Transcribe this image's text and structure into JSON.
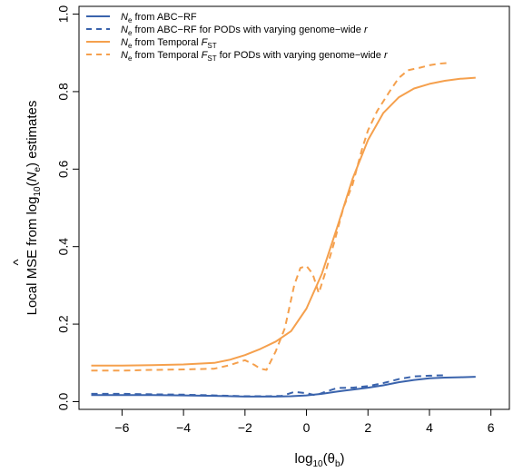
{
  "chart_data": {
    "type": "line",
    "xlabel_text": "log",
    "xlabel_sub": "10",
    "xlabel_arg": "(θ",
    "xlabel_arg_sub": "b",
    "xlabel_close": ")",
    "ylabel_pre": "Local MSE from log",
    "ylabel_sub": "10",
    "ylabel_open": "(",
    "ylabel_N": "N",
    "ylabel_hat": "^",
    "ylabel_e": "e",
    "ylabel_post": ") estimates",
    "xlim": [
      -7.4,
      6.6
    ],
    "ylim": [
      -0.02,
      1.02
    ],
    "x_ticks": [
      "−6",
      "−4",
      "−2",
      "0",
      "2",
      "4",
      "6"
    ],
    "x_tick_values": [
      -6,
      -4,
      -2,
      0,
      2,
      4,
      6
    ],
    "y_ticks": [
      "0.0",
      "0.2",
      "0.4",
      "0.6",
      "0.8",
      "1.0"
    ],
    "y_tick_values": [
      0,
      0.2,
      0.4,
      0.6,
      0.8,
      1.0
    ],
    "colors": {
      "blue": "#3a63ac",
      "orange": "#f5a04d"
    },
    "legend": [
      {
        "N": "N",
        "sub": "e",
        "text": " from ABC−RF",
        "dashed": false,
        "color": "blue"
      },
      {
        "N": "N",
        "sub": "e",
        "text": " from ABC−RF for PODs with varying genome−wide ",
        "r": "r",
        "dashed": true,
        "color": "blue"
      },
      {
        "N": "N",
        "sub": "e",
        "text": " from Temporal ",
        "F": "F",
        "Fsub": "ST",
        "dashed": false,
        "color": "orange"
      },
      {
        "N": "N",
        "sub": "e",
        "text": " from Temporal ",
        "F": "F",
        "Fsub": "ST",
        "text2": " for PODs with varying genome−wide ",
        "r": "r",
        "dashed": true,
        "color": "orange"
      }
    ],
    "series": [
      {
        "color": "blue",
        "dashed": false,
        "points": [
          [
            -7.0,
            0.017
          ],
          [
            -6.0,
            0.017
          ],
          [
            -5.0,
            0.017
          ],
          [
            -4.0,
            0.016
          ],
          [
            -3.0,
            0.015
          ],
          [
            -2.0,
            0.013
          ],
          [
            -1.0,
            0.013
          ],
          [
            -0.5,
            0.014
          ],
          [
            0.0,
            0.016
          ],
          [
            0.5,
            0.02
          ],
          [
            1.0,
            0.026
          ],
          [
            1.5,
            0.031
          ],
          [
            2.0,
            0.036
          ],
          [
            2.5,
            0.042
          ],
          [
            3.0,
            0.05
          ],
          [
            3.5,
            0.056
          ],
          [
            4.0,
            0.06
          ],
          [
            4.5,
            0.062
          ],
          [
            5.0,
            0.063
          ],
          [
            5.5,
            0.064
          ]
        ]
      },
      {
        "color": "blue",
        "dashed": true,
        "points": [
          [
            -7.0,
            0.02
          ],
          [
            -6.0,
            0.02
          ],
          [
            -5.0,
            0.019
          ],
          [
            -4.0,
            0.018
          ],
          [
            -3.0,
            0.016
          ],
          [
            -2.0,
            0.014
          ],
          [
            -1.2,
            0.014
          ],
          [
            -0.8,
            0.015
          ],
          [
            -0.4,
            0.025
          ],
          [
            0.0,
            0.022
          ],
          [
            0.3,
            0.016
          ],
          [
            0.6,
            0.025
          ],
          [
            1.0,
            0.035
          ],
          [
            1.5,
            0.036
          ],
          [
            2.0,
            0.04
          ],
          [
            2.5,
            0.048
          ],
          [
            3.0,
            0.058
          ],
          [
            3.5,
            0.065
          ],
          [
            4.0,
            0.067
          ],
          [
            4.5,
            0.068
          ]
        ]
      },
      {
        "color": "orange",
        "dashed": false,
        "points": [
          [
            -7.0,
            0.093
          ],
          [
            -6.0,
            0.093
          ],
          [
            -5.0,
            0.094
          ],
          [
            -4.0,
            0.096
          ],
          [
            -3.0,
            0.1
          ],
          [
            -2.5,
            0.108
          ],
          [
            -2.0,
            0.12
          ],
          [
            -1.5,
            0.136
          ],
          [
            -1.0,
            0.155
          ],
          [
            -0.5,
            0.182
          ],
          [
            0.0,
            0.24
          ],
          [
            0.5,
            0.33
          ],
          [
            1.0,
            0.45
          ],
          [
            1.5,
            0.575
          ],
          [
            2.0,
            0.675
          ],
          [
            2.5,
            0.745
          ],
          [
            3.0,
            0.785
          ],
          [
            3.5,
            0.808
          ],
          [
            4.0,
            0.82
          ],
          [
            4.5,
            0.828
          ],
          [
            5.0,
            0.833
          ],
          [
            5.5,
            0.836
          ]
        ]
      },
      {
        "color": "orange",
        "dashed": true,
        "points": [
          [
            -7.0,
            0.08
          ],
          [
            -6.0,
            0.08
          ],
          [
            -5.0,
            0.082
          ],
          [
            -4.0,
            0.083
          ],
          [
            -3.0,
            0.085
          ],
          [
            -2.5,
            0.094
          ],
          [
            -2.0,
            0.107
          ],
          [
            -1.7,
            0.095
          ],
          [
            -1.5,
            0.085
          ],
          [
            -1.3,
            0.082
          ],
          [
            -1.0,
            0.13
          ],
          [
            -0.7,
            0.19
          ],
          [
            -0.4,
            0.3
          ],
          [
            -0.2,
            0.345
          ],
          [
            0.0,
            0.35
          ],
          [
            0.2,
            0.33
          ],
          [
            0.4,
            0.28
          ],
          [
            0.6,
            0.33
          ],
          [
            0.9,
            0.41
          ],
          [
            1.2,
            0.5
          ],
          [
            1.5,
            0.56
          ],
          [
            1.8,
            0.65
          ],
          [
            2.0,
            0.7
          ],
          [
            2.3,
            0.75
          ],
          [
            2.7,
            0.8
          ],
          [
            3.0,
            0.835
          ],
          [
            3.3,
            0.855
          ],
          [
            3.7,
            0.862
          ],
          [
            4.0,
            0.868
          ],
          [
            4.3,
            0.872
          ],
          [
            4.6,
            0.874
          ]
        ]
      }
    ]
  }
}
